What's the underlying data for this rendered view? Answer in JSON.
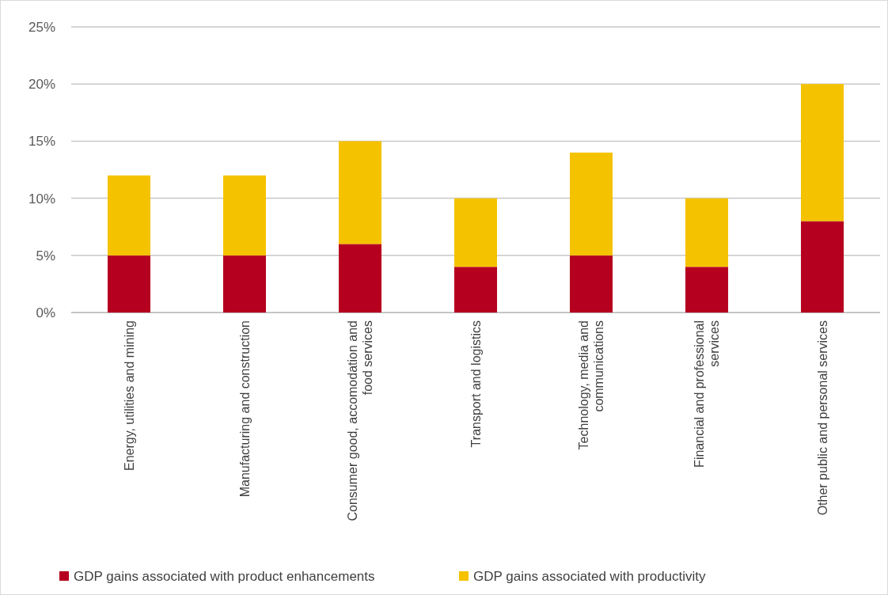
{
  "chart_data": {
    "type": "bar",
    "stacked": true,
    "categories": [
      "Energy, utilities and mining",
      "Manufacturing and construction",
      "Consumer good, accomodation and food services",
      "Transport and logistics",
      "Technology, media and communications",
      "Financial and professional services",
      "Other public and personal services"
    ],
    "series": [
      {
        "name": "GDP gains associated with product enhancements",
        "color": "#b5001f",
        "values": [
          5,
          5,
          6,
          4,
          5,
          4,
          8
        ]
      },
      {
        "name": "GDP gains associated with productivity",
        "color": "#f5c200",
        "values": [
          7,
          7,
          9,
          6,
          9,
          6,
          12
        ]
      }
    ],
    "ylim": [
      0,
      25
    ],
    "yticks": [
      {
        "value": 0,
        "label": "0%"
      },
      {
        "value": 5,
        "label": "5%"
      },
      {
        "value": 10,
        "label": "10%"
      },
      {
        "value": 15,
        "label": "15%"
      },
      {
        "value": 20,
        "label": "20%"
      },
      {
        "value": 25,
        "label": "25%"
      }
    ],
    "grid": "y",
    "legend": "bottom"
  }
}
